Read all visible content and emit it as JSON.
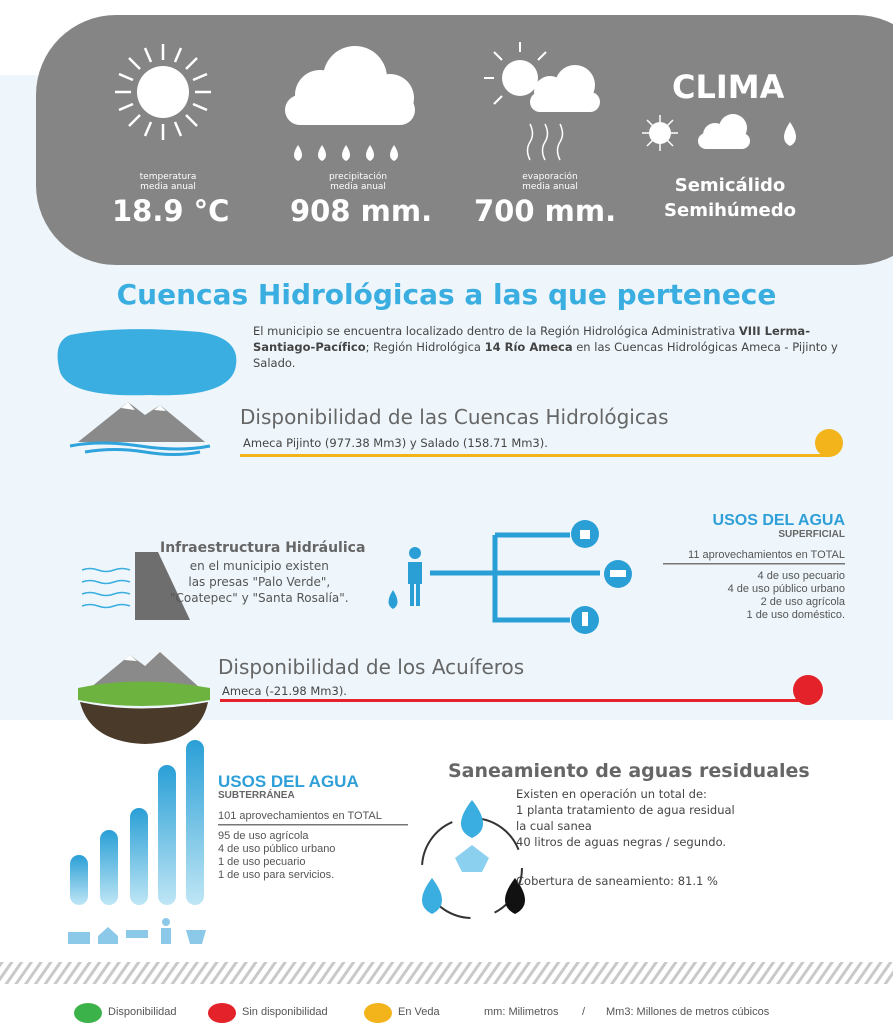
{
  "clima": {
    "items": [
      {
        "label1": "temperatura",
        "label2": "media anual",
        "value": "18.9 °C"
      },
      {
        "label1": "precipitación",
        "label2": "media anual",
        "value": "908 mm."
      },
      {
        "label1": "evaporación",
        "label2": "media anual",
        "value": "700 mm."
      }
    ],
    "title": "CLIMA",
    "type1": "Semicálido",
    "type2": "Semihúmedo"
  },
  "cuencas": {
    "title": "Cuencas Hidrológicas a las que pertenece",
    "segments": [
      {
        "text": "El municipio se encuentra localizado dentro de la Región Hidrológica Administrativa ",
        "bold": false
      },
      {
        "text": "VIII Lerma-Santiago-Pacífico",
        "bold": true
      },
      {
        "text": "; Región Hidrológica ",
        "bold": false
      },
      {
        "text": "14 Río Ameca",
        "bold": true
      },
      {
        "text": " en las Cuencas Hidrológicas Ameca - Pijinto y Salado.",
        "bold": false
      }
    ]
  },
  "disponibilidad_cuencas": {
    "title": "Disponibilidad de las Cuencas Hidrológicas",
    "text": "Ameca Pijinto (977.38 Mm3) y Salado (158.71 Mm3)."
  },
  "infraestructura": {
    "title": "Infraestructura Hidráulica",
    "lines": [
      "en el municipio existen",
      "las presas \"Palo Verde\",",
      "\"Coatepec\" y \"Santa Rosalía\"."
    ]
  },
  "usos_superficial": {
    "title": "USOS DEL AGUA",
    "subtitle": "SUPERFICIAL",
    "total": "11 aprovechamientos en TOTAL",
    "items": [
      "4 de uso pecuario",
      "4 de uso público urbano",
      "2 de uso agrícola",
      "1 de uso doméstico."
    ]
  },
  "acuiferos": {
    "title": "Disponibilidad de los Acuíferos",
    "text": "Ameca (-21.98 Mm3)."
  },
  "usos_subterranea": {
    "title": "USOS DEL AGUA",
    "subtitle": "SUBTERRÁNEA",
    "total": "101 aprovechamientos en TOTAL",
    "items": [
      "95 de uso agrícola",
      "4 de uso público urbano",
      "1 de uso pecuario",
      "1 de uso para servicios."
    ]
  },
  "saneamiento": {
    "title": "Saneamiento de aguas residuales",
    "lines": [
      "Existen en operación un total de:",
      "1 planta tratamiento de agua residual",
      "la cual sanea",
      "40 litros de aguas negras / segundo."
    ],
    "cobertura": "Cobertura de saneamiento: 81.1 %"
  },
  "legend": {
    "items": [
      "Disponibilidad",
      "Sin disponibilidad",
      "En Veda"
    ],
    "note1": "mm: Milimetros",
    "separator": "/",
    "note2": "Mm3: Millones de metros cúbicos"
  }
}
